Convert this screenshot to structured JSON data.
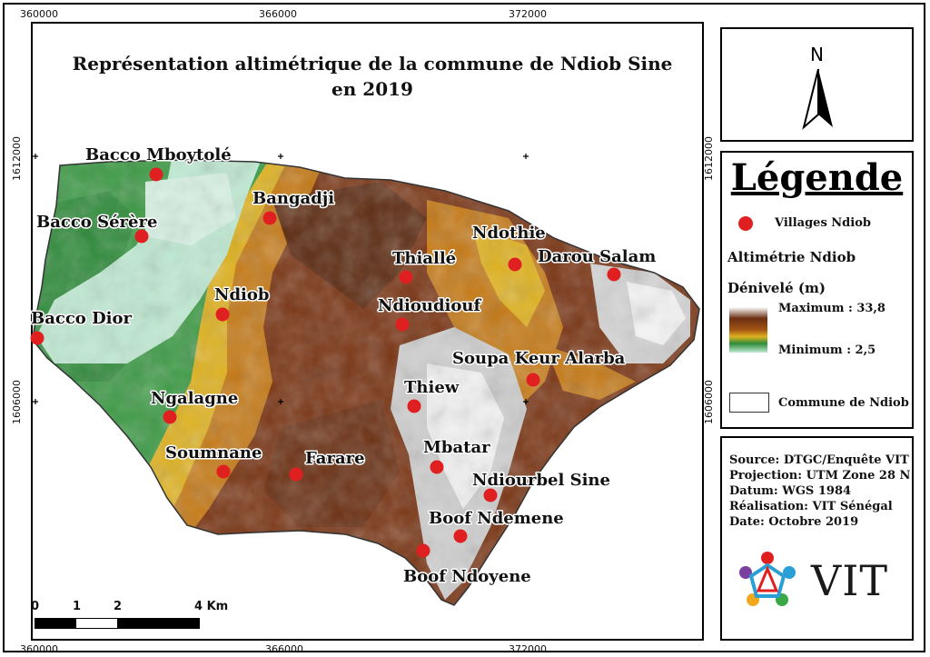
{
  "map": {
    "title_line1": "Représentation altimétrique de la commune de Ndiob Sine",
    "title_line2": "en 2019",
    "x_ticks": [
      "360000",
      "366000",
      "372000"
    ],
    "y_ticks": [
      "1612000",
      "1606000"
    ],
    "villages": [
      {
        "name": "Bacco Mboytolé"
      },
      {
        "name": "Bangadji"
      },
      {
        "name": "Bacco Sérère"
      },
      {
        "name": "Ndothie"
      },
      {
        "name": "Thiallé"
      },
      {
        "name": "Darou Salam"
      },
      {
        "name": "Ndiob"
      },
      {
        "name": "Ndioudiouf"
      },
      {
        "name": "Bacco Dior"
      },
      {
        "name": "Soupa Keur Alarba"
      },
      {
        "name": "Thiew"
      },
      {
        "name": "Ngalagne"
      },
      {
        "name": "Mbatar"
      },
      {
        "name": "Soumnane"
      },
      {
        "name": "Farare"
      },
      {
        "name": "Ndiourbel Sine"
      },
      {
        "name": "Boof Ndemene"
      },
      {
        "name": "Boof Ndoyene"
      }
    ],
    "scale": {
      "labels": [
        "0",
        "1",
        "2",
        "4 Km"
      ]
    }
  },
  "north": {
    "label": "N"
  },
  "legend": {
    "title": "Légende",
    "villages_label": "Villages Ndiob",
    "alt_title": "Altimétrie Ndiob",
    "denivele_label": "Dénivelé (m)",
    "max_label": "Maximum : 33,8",
    "min_label": "Minimum : 2,5",
    "commune_label": "Commune de Ndiob",
    "colors": {
      "village": "#e02020",
      "ramp": [
        "#ffffff",
        "#6b2f12",
        "#c67a16",
        "#e8c21e",
        "#2e8b3a",
        "#bfe9d2"
      ]
    }
  },
  "source": {
    "lines": [
      "Source: DTGC/Enquête VIT",
      "Projection: UTM Zone 28 N",
      "Datum: WGS 1984",
      "Réalisation: VIT Sénégal",
      "Date: Octobre 2019"
    ],
    "logo_text": "VIT"
  }
}
